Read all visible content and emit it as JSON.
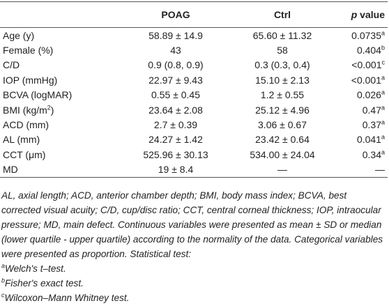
{
  "table": {
    "header": [
      {
        "text": "",
        "italic": ""
      },
      {
        "text": "POAG"
      },
      {
        "text": "Ctrl"
      },
      {
        "italic": "p",
        "text": " value"
      }
    ],
    "rows": [
      [
        {
          "text": "Age (y)"
        },
        {
          "text": "58.89 ± 14.9"
        },
        {
          "text": "65.60 ± 11.32"
        },
        {
          "text": "0.0735",
          "sup": "a"
        }
      ],
      [
        {
          "text": "Female (%)"
        },
        {
          "text": "43"
        },
        {
          "text": "58"
        },
        {
          "text": "0.404",
          "sup": "b"
        }
      ],
      [
        {
          "text": "C/D"
        },
        {
          "text": "0.9 (0.8, 0.9)"
        },
        {
          "text": "0.3 (0.3, 0.4)"
        },
        {
          "text": "<0.001",
          "sup": "c"
        }
      ],
      [
        {
          "text": "IOP (mmHg)"
        },
        {
          "text": "22.97 ± 9.43"
        },
        {
          "text": "15.10 ± 2.13"
        },
        {
          "text": "<0.001",
          "sup": "a"
        }
      ],
      [
        {
          "text": "BCVA (logMAR)"
        },
        {
          "text": "0.55 ± 0.45"
        },
        {
          "text": "1.2 ± 0.55"
        },
        {
          "text": "0.026",
          "sup": "a"
        }
      ],
      [
        {
          "text": "BMI (kg/m",
          "sup": "2",
          "after": ")"
        },
        {
          "text": "23.64 ± 2.08"
        },
        {
          "text": "25.12 ± 4.96"
        },
        {
          "text": "0.47",
          "sup": "a"
        }
      ],
      [
        {
          "text": "ACD (mm)"
        },
        {
          "text": "2.7 ± 0.39"
        },
        {
          "text": "3.06 ± 0.67"
        },
        {
          "text": "0.37",
          "sup": "a"
        }
      ],
      [
        {
          "text": "AL (mm)"
        },
        {
          "text": "24.27 ± 1.42"
        },
        {
          "text": "23.42 ± 0.64"
        },
        {
          "text": "0.041",
          "sup": "a"
        }
      ],
      [
        {
          "text": "CCT (μm)"
        },
        {
          "text": "525.96 ± 30.13"
        },
        {
          "text": "534.00 ± 24.04"
        },
        {
          "text": "0.34",
          "sup": "a"
        }
      ],
      [
        {
          "text": "MD"
        },
        {
          "text": "19 ± 8.4"
        },
        {
          "text": "—"
        },
        {
          "text": "—"
        }
      ]
    ]
  },
  "notes": {
    "abbreviations": "AL, axial length; ACD, anterior chamber depth; BMI, body mass index; BCVA, best corrected visual acuity; C/D, cup/disc ratio; CCT, central corneal thickness; IOP, intraocular pressure; MD, main defect. Continuous variables were presented as mean ± SD or median (lower quartile - upper quartile) according to the normality of the data. Categorical variables were presented as proportion. Statistical test:",
    "footnotes": [
      {
        "sup": "a",
        "text": "Welch's t–test."
      },
      {
        "sup": "b",
        "text": "Fisher's exact test."
      },
      {
        "sup": "c",
        "text": "Wilcoxon–Mann Whitney test."
      }
    ]
  }
}
